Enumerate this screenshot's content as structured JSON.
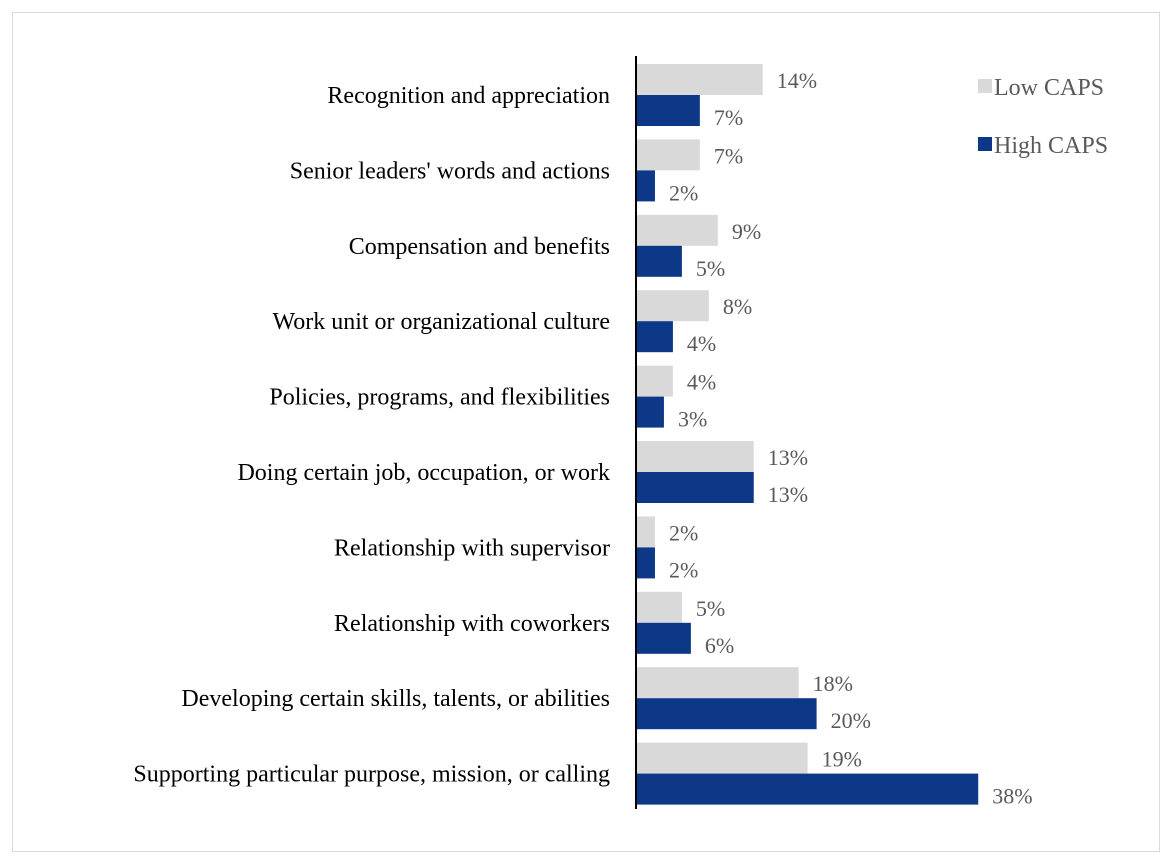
{
  "chart_data": {
    "type": "bar",
    "orientation": "horizontal",
    "categories": [
      "Recognition and appreciation",
      "Senior leaders' words and actions",
      "Compensation and benefits",
      "Work unit or organizational culture",
      "Policies, programs, and flexibilities",
      "Doing certain job, occupation, or work",
      "Relationship with supervisor",
      "Relationship with coworkers",
      "Developing certain skills, talents, or abilities",
      "Supporting particular purpose, mission, or calling"
    ],
    "series": [
      {
        "name": "Low CAPS",
        "color": "#d9d9d9",
        "values": [
          14,
          7,
          9,
          8,
          4,
          13,
          2,
          5,
          18,
          19
        ],
        "labels": [
          "14%",
          "7%",
          "9%",
          "8%",
          "4%",
          "13%",
          "2%",
          "5%",
          "18%",
          "19%"
        ]
      },
      {
        "name": "High CAPS",
        "color": "#0d3887",
        "values": [
          7,
          2,
          5,
          4,
          3,
          13,
          2,
          6,
          20,
          38
        ],
        "labels": [
          "7%",
          "2%",
          "5%",
          "4%",
          "3%",
          "13%",
          "2%",
          "6%",
          "20%",
          "38%"
        ]
      }
    ],
    "unit": "%",
    "xlim": [
      0,
      40
    ],
    "grid": false,
    "legend_position": "top-right"
  }
}
